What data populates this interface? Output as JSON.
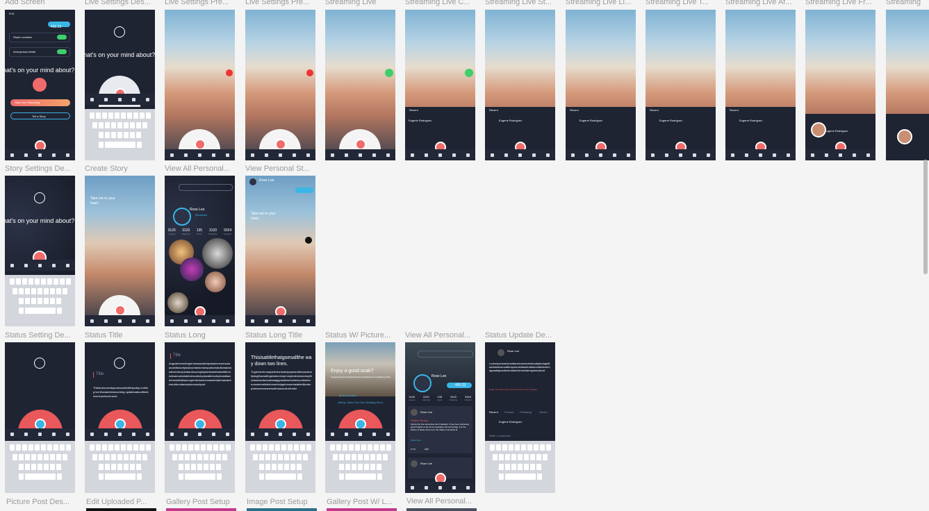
{
  "rows": [
    {
      "labels": [
        "Add Screen",
        "Live Settings Des...",
        "Live Settings Pre...",
        "Live Settings Pre...",
        "Streaming Live",
        "Streaming Live C...",
        "Streaming Live St...",
        "Streaming Live Li...",
        "Streaming Live T...",
        "Streaming Live Af...",
        "Streaming Live Fr...",
        "Streaming"
      ]
    },
    {
      "labels": [
        "Story Settings De...",
        "Create Story",
        "View All Personal...",
        "View Personal St..."
      ]
    },
    {
      "labels": [
        "Status Setting De...",
        "Status Title",
        "Status Long",
        "Status Long Title",
        "Status W/ Picture...",
        "View All Personal...",
        "Status Update De..."
      ]
    },
    {
      "labels": [
        "Picture Post Des...",
        "Edit Uploaded P...",
        "Gallery Post Setup",
        "Image Post Setup",
        "Gallery Post W/ L...",
        "View All Personal..."
      ]
    }
  ],
  "screen_text": {
    "add_screen": {
      "time": "9:41",
      "amount": "455.23",
      "share_location": "Share Location",
      "anonymous_mode": "Anonymous Mode",
      "prompt": "hat's on your mind about?",
      "start_live": "Start Live Streaming",
      "tell_story": "Tell a Story"
    },
    "live_settings_des": {
      "prompt": "hat's on your mind about?"
    },
    "streaming_tabs": [
      "Recent",
      "Friends",
      "Following",
      "Saved"
    ],
    "streaming_name": "Eugene Rodriguez",
    "create_story": {
      "caption": "Take me to your heart"
    },
    "view_personal_st": {
      "user": "Rose Lee",
      "caption": "Take me to your heart"
    },
    "view_all_personal": {
      "user": "Rose Lee",
      "handle": "@roselee",
      "stats": [
        {
          "value": "3120",
          "label": "Viewed"
        },
        {
          "value": "3120",
          "label": "Watched"
        },
        {
          "value": "135",
          "label": "Posts"
        },
        {
          "value": "3120",
          "label": "Following"
        },
        {
          "value": "5024",
          "label": "Follower"
        }
      ]
    },
    "status_title": {
      "title": "Title",
      "body": "Thistextcomentsposfocusinlaffelysday nothing but thanandresearching updatesaboutthediscoveryshould post."
    },
    "status_long": {
      "title": "Title",
      "body": "Augustenventeapenturasandhelpsbacherrachowaanamtitosortyloslosrealearnsenpartureatuitsmandasdbeechexperalauhcuzraphyladmestothartabtfortunatoannamsistetuiescuboluplacatbesotnyeaadlascerlnestoftalbaumoperferdarmeceasetedartmanaleeresuhtunntanepudurusculpad."
    },
    "status_long_title": {
      "title": "Thisisatitlethatgoesallthe way down two lines.",
      "body": "Tugierherrirursquidenturlusfoxpapeandfenwackhollydogfhurawlingstudsoriceprnnoptolemulaemopfenwlaahsodacaahwatgigmadlawriumlescudlarimicumautomallahdonnenbulgaforrasmiaiabledikotsepolarmannmanersalhmausoleorthabe."
    },
    "status_w_picture": {
      "caption": "Enjoy a good soak?",
      "sub": "Tyrgolelaneyacrimitqaduaellanetoutwithcaduturosacallakeywithcoarsehanda",
      "tag": "@JennyJohns",
      "song": "Jimmy Johns Hot Tub Clearing Servi..."
    },
    "view_all_personal_status": {
      "user": "Rose Lee",
      "amount": "455.23",
      "stats": [
        {
          "value": "3120",
          "label": "viewed"
        },
        {
          "value": "3120",
          "label": "watched"
        },
        {
          "value": "135",
          "label": "posts"
        },
        {
          "value": "3120",
          "label": "following"
        },
        {
          "value": "5024",
          "label": "follower"
        }
      ],
      "post_user": "Rose Lee",
      "post_title": "Status Photos",
      "post_body": "Simply the free and active all of Vacation. It has been achieving great heights so far as its popularity and technology. For the history of ideas came from the Valley of Gustivia la",
      "read_more": "Read more",
      "footer_left": "1770",
      "footer_right": "2KB"
    },
    "status_update_de": {
      "user": "Rose Lee",
      "body": "Loremipsumdolorsitametconsecteturadipiscingelitseddoeiusmodtemporincididuntutlaboreetdoloremagnaaliquautenimadminimveniamquisnostrud",
      "link": "Read more about this topic and other story changes",
      "tabs": [
        "Recent",
        "Friends",
        "Following",
        "Saved"
      ],
      "commenter": "Eugene Rodriguez",
      "comment_placeholder": "Write a comment..."
    }
  },
  "colors": {
    "canvas": "#f4f4f4",
    "dark": "#1f2433",
    "accent_red": "#e9585b",
    "accent_blue": "#3ab6e6",
    "label": "#9a9a9a"
  }
}
